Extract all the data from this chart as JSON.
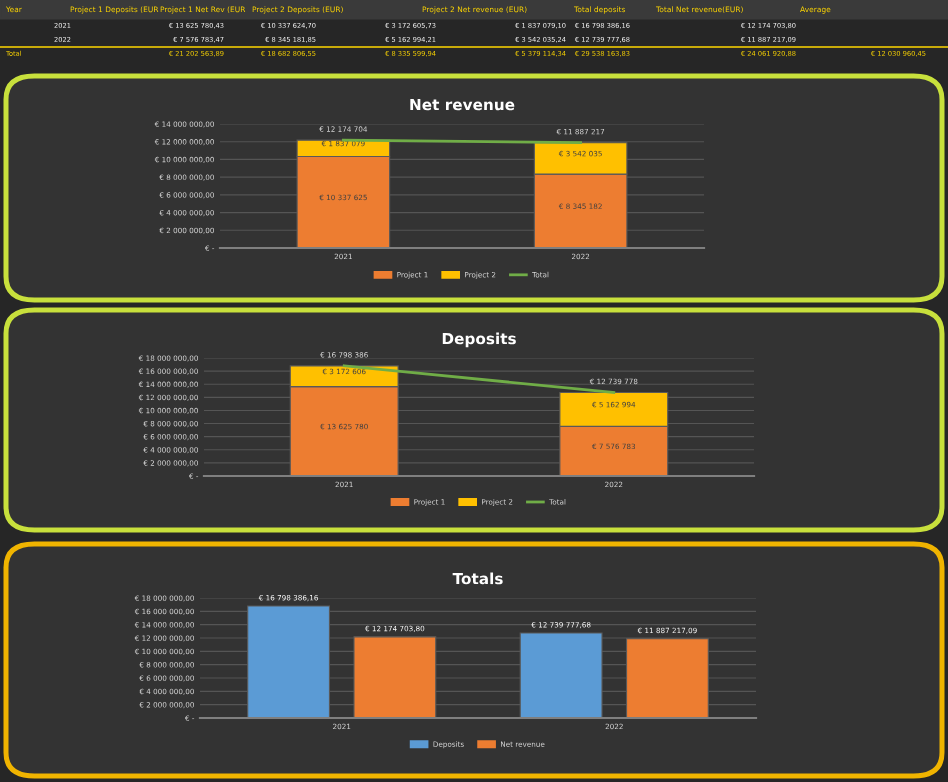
{
  "chart_data": [
    {
      "type": "other",
      "annotations": [
        "Year",
        "Project 1 Deposits (EUR",
        "Project 1 Net Rev (EUR",
        "Project 2 Deposits (EUR)",
        "Project 2 Net revenue (EUR)",
        "Total deposits",
        "Total Net revenue(EUR)",
        "Average",
        "2021",
        "€ 13 625 780,43",
        "€ 10 337 624,70",
        "€ 3 172 605,73",
        "€ 1 837 079,10",
        "€ 16 798 386,16",
        "€ 12 174 703,80",
        "2022",
        "€ 7 576 783,47",
        "€ 8 345 181,85",
        "€ 5 162 994,21",
        "€ 3 542 035,24",
        "€ 12 739 777,68",
        "€ 11 887 217,09",
        "Total",
        "€ 21 202 563,89",
        "€ 18 682 806,55",
        "€ 8 335 599,94",
        "€ 5 379 114,34",
        "€ 29 538 163,83",
        "€ 24 061 920,88",
        "€ 12 030 960,45"
      ]
    },
    {
      "type": "bar",
      "title": "Net revenue",
      "categories": [
        "2021",
        "2022"
      ],
      "stacked": true,
      "grid": "y",
      "legend": "bottom",
      "ylim": [
        0,
        14000000
      ],
      "yticks": [
        {
          "value": 0,
          "label": "€ -"
        },
        {
          "value": 2000000,
          "label": "€ 2 000 000,00"
        },
        {
          "value": 4000000,
          "label": "€ 4 000 000,00"
        },
        {
          "value": 6000000,
          "label": "€ 6 000 000,00"
        },
        {
          "value": 8000000,
          "label": "€ 8 000 000,00"
        },
        {
          "value": 10000000,
          "label": "€ 10 000 000,00"
        },
        {
          "value": 12000000,
          "label": "€ 12 000 000,00"
        },
        {
          "value": 14000000,
          "label": "€ 14 000 000,00"
        }
      ],
      "series": [
        {
          "name": "Project 1",
          "color": "#ed7d31",
          "values": [
            10337624.7,
            8345181.85
          ],
          "value_labels": [
            "€ 10 337 625",
            "€ 8 345 182"
          ]
        },
        {
          "name": "Project 2",
          "color": "#ffc000",
          "values": [
            1837079.1,
            3542035.24
          ],
          "value_labels": [
            "€ 1 837 079",
            "€ 3 542 035"
          ]
        },
        {
          "name": "Total",
          "type": "line",
          "color": "#70ad47",
          "values": [
            12174703.8,
            11887217.09
          ],
          "value_labels": [
            "€ 12 174 704",
            "€ 11 887 217"
          ]
        }
      ]
    },
    {
      "type": "bar",
      "title": "Deposits",
      "categories": [
        "2021",
        "2022"
      ],
      "stacked": true,
      "grid": "y",
      "legend": "bottom",
      "ylim": [
        0,
        18000000
      ],
      "yticks": [
        {
          "value": 0,
          "label": "€ -"
        },
        {
          "value": 2000000,
          "label": "€ 2 000 000,00"
        },
        {
          "value": 4000000,
          "label": "€ 4 000 000,00"
        },
        {
          "value": 6000000,
          "label": "€ 6 000 000,00"
        },
        {
          "value": 8000000,
          "label": "€ 8 000 000,00"
        },
        {
          "value": 10000000,
          "label": "€ 10 000 000,00"
        },
        {
          "value": 12000000,
          "label": "€ 12 000 000,00"
        },
        {
          "value": 14000000,
          "label": "€ 14 000 000,00"
        },
        {
          "value": 16000000,
          "label": "€ 16 000 000,00"
        },
        {
          "value": 18000000,
          "label": "€ 18 000 000,00"
        }
      ],
      "series": [
        {
          "name": "Project 1",
          "color": "#ed7d31",
          "values": [
            13625780.43,
            7576783.47
          ],
          "value_labels": [
            "€ 13 625 780",
            "€ 7 576 783"
          ]
        },
        {
          "name": "Project 2",
          "color": "#ffc000",
          "values": [
            3172605.73,
            5162994.21
          ],
          "value_labels": [
            "€ 3 172 606",
            "€ 5 162 994"
          ]
        },
        {
          "name": "Total",
          "type": "line",
          "color": "#70ad47",
          "values": [
            16798386.16,
            12739777.68
          ],
          "value_labels": [
            "€ 16 798 386",
            "€ 12 739 778"
          ]
        }
      ]
    },
    {
      "type": "bar",
      "title": "Totals",
      "categories": [
        "2021",
        "2022"
      ],
      "grid": "y",
      "legend": "bottom",
      "ylim": [
        0,
        18000000
      ],
      "yticks": [
        {
          "value": 0,
          "label": "€ -"
        },
        {
          "value": 2000000,
          "label": "€ 2 000 000,00"
        },
        {
          "value": 4000000,
          "label": "€ 4 000 000,00"
        },
        {
          "value": 6000000,
          "label": "€ 6 000 000,00"
        },
        {
          "value": 8000000,
          "label": "€ 8 000 000,00"
        },
        {
          "value": 10000000,
          "label": "€ 10 000 000,00"
        },
        {
          "value": 12000000,
          "label": "€ 12 000 000,00"
        },
        {
          "value": 14000000,
          "label": "€ 14 000 000,00"
        },
        {
          "value": 16000000,
          "label": "€ 16 000 000,00"
        },
        {
          "value": 18000000,
          "label": "€ 18 000 000,00"
        }
      ],
      "series": [
        {
          "name": "Deposits",
          "color": "#5b9bd5",
          "values": [
            16798386.16,
            12739777.68
          ],
          "value_labels": [
            "€ 16 798 386,16",
            "€ 12 739 777,68"
          ]
        },
        {
          "name": "Net revenue",
          "color": "#ed7d31",
          "values": [
            12174703.8,
            11887217.09
          ],
          "value_labels": [
            "€ 12 174 703,80",
            "€ 11 887 217,09"
          ]
        }
      ]
    }
  ]
}
